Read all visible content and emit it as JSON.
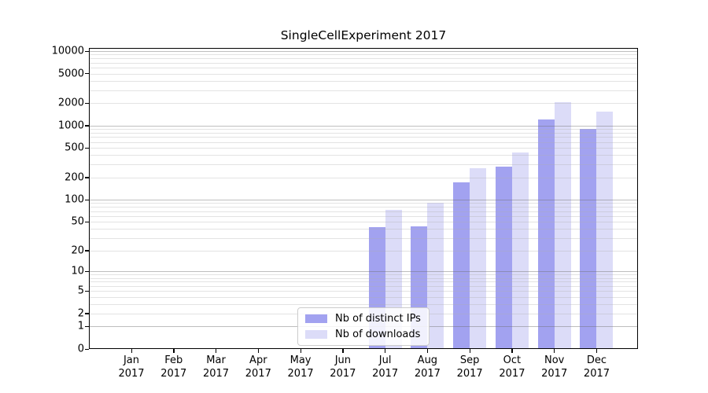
{
  "title": "SingleCellExperiment 2017",
  "chart_data": {
    "type": "bar",
    "categories": [
      "Jan",
      "Feb",
      "Mar",
      "Apr",
      "May",
      "Jun",
      "Jul",
      "Aug",
      "Sep",
      "Oct",
      "Nov",
      "Dec"
    ],
    "category_year": "2017",
    "series": [
      {
        "name": "Nb of distinct IPs",
        "color": "#a2a2f0",
        "values": [
          0,
          0,
          0,
          0,
          0,
          0,
          42,
          43,
          172,
          277,
          1200,
          905
        ]
      },
      {
        "name": "Nb of downloads",
        "color": "#dcdcf8",
        "values": [
          0,
          0,
          0,
          0,
          0,
          0,
          72,
          91,
          265,
          430,
          2080,
          1520
        ]
      }
    ],
    "y_ticks": [
      0,
      1,
      2,
      5,
      10,
      20,
      50,
      100,
      200,
      500,
      1000,
      2000,
      5000,
      10000
    ],
    "scale": "log1p",
    "ylim": [
      0,
      10000
    ],
    "grid": true,
    "grid_minor": true,
    "legend_position": "bottom-center",
    "xlabel": "",
    "ylabel": ""
  },
  "colors": {
    "distinct_ips_bar": "#a2a2f0",
    "downloads_bar": "#dcdcf8",
    "major_grid": "#b0b0b0",
    "minor_grid": "#dedede",
    "axis": "#000000",
    "background": "#ffffff"
  }
}
